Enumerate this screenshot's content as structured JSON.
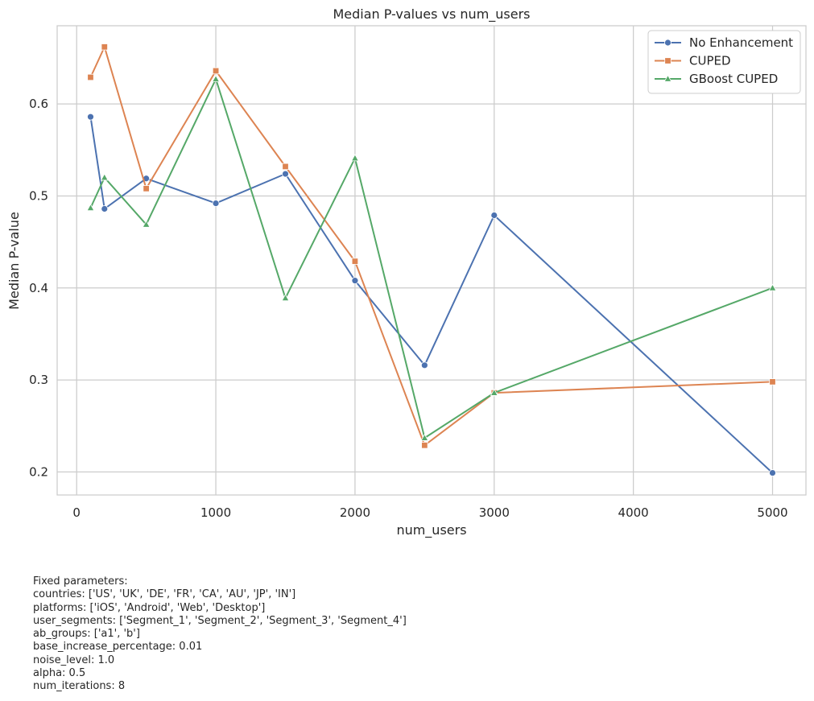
{
  "chart_data": {
    "type": "line",
    "title": "Median P-values vs num_users",
    "xlabel": "num_users",
    "ylabel": "Median P-value",
    "xlim": [
      -140,
      5240
    ],
    "ylim": [
      0.175,
      0.685
    ],
    "xticks": [
      0,
      1000,
      2000,
      3000,
      4000,
      5000
    ],
    "xtick_labels": [
      "0",
      "1000",
      "2000",
      "3000",
      "4000",
      "5000"
    ],
    "yticks": [
      0.2,
      0.3,
      0.4,
      0.5,
      0.6
    ],
    "ytick_labels": [
      "0.2",
      "0.3",
      "0.4",
      "0.5",
      "0.6"
    ],
    "grid": true,
    "legend_position": "top-right",
    "x": [
      100,
      200,
      500,
      1000,
      1500,
      2000,
      2500,
      3000,
      5000
    ],
    "series": [
      {
        "name": "No Enhancement",
        "color": "#4c72b0",
        "marker": "circle",
        "values": [
          0.586,
          0.486,
          0.519,
          0.492,
          0.524,
          0.408,
          0.316,
          0.479,
          0.199
        ]
      },
      {
        "name": "CUPED",
        "color": "#dd8452",
        "marker": "square",
        "values": [
          0.629,
          0.662,
          0.508,
          0.636,
          0.532,
          0.429,
          0.229,
          0.286,
          0.298
        ]
      },
      {
        "name": "GBoost CUPED",
        "color": "#55a868",
        "marker": "triangle",
        "values": [
          0.487,
          0.52,
          0.469,
          0.627,
          0.389,
          0.541,
          0.237,
          0.286,
          0.4
        ]
      }
    ]
  },
  "fixed_parameters": {
    "heading": "Fixed parameters:",
    "lines": [
      "countries: ['US', 'UK', 'DE', 'FR', 'CA', 'AU', 'JP', 'IN']",
      "platforms: ['iOS', 'Android', 'Web', 'Desktop']",
      "user_segments: ['Segment_1', 'Segment_2', 'Segment_3', 'Segment_4']",
      "ab_groups: ['a1', 'b']",
      "base_increase_percentage: 0.01",
      "noise_level: 1.0",
      "alpha: 0.5",
      "num_iterations: 8"
    ]
  }
}
